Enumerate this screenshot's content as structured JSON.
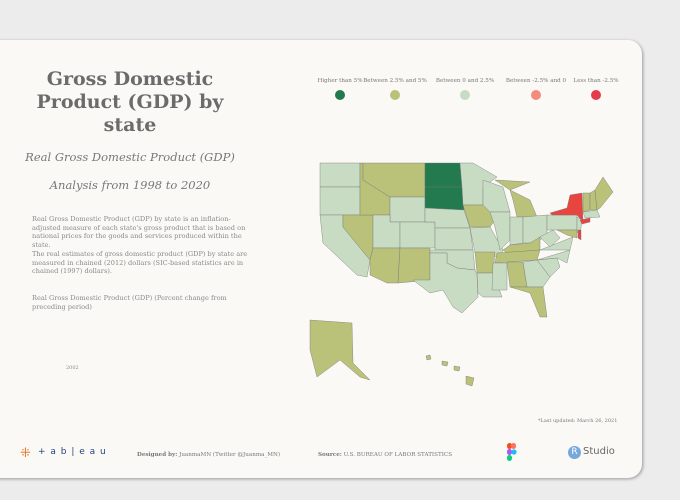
{
  "header": {
    "title": "Gross Domestic Product (GDP) by state",
    "subtitle1": "Real Gross Domestic Product (GDP)",
    "subtitle2": "Analysis from 1998 to 2020"
  },
  "description": {
    "p1": "Real Gross Domestic Product (GDP) by state is an inflation-adjusted measure of each state's gross product that is based on national prices for the goods and services produced within the state.",
    "p2": "The real estimates of gross domestic product (GDP) by state are measured in chained (2012) dollars (SIC-based statistics are in chained (1997) dollars).",
    "p3": "Real Gross Domestic Product (GDP)  (Percent change from preceding period)",
    "year": "2002"
  },
  "legend": [
    {
      "label": "Higher than 5%",
      "color": "#237a4f"
    },
    {
      "label": "Between 2.5% and 5%",
      "color": "#b9c278"
    },
    {
      "label": "Between 0 and 2.5%",
      "color": "#c8dcc3"
    },
    {
      "label": "Between -2.5% and  0",
      "color": "#f58a7e"
    },
    {
      "label": "Less than -2.5%",
      "color": "#e43a4a"
    }
  ],
  "colors": {
    "high": "#237a4f",
    "mid": "#b9c278",
    "low": "#c8dcc3",
    "neg": "#f58a7e",
    "veryneg": "#e84540"
  },
  "footer": {
    "last_updated": "*Last updated: March 26, 2021",
    "tableau": "+ a b | e a u",
    "designed_label": "Designed by:",
    "designed_value": " JuanmaMN (Twitter @Juanma_MN)",
    "source_label": "Source:",
    "source_value": " U.S. BUREAU OF LABOR STATISTICS",
    "rstudio_r": "R",
    "rstudio": "Studio"
  }
}
